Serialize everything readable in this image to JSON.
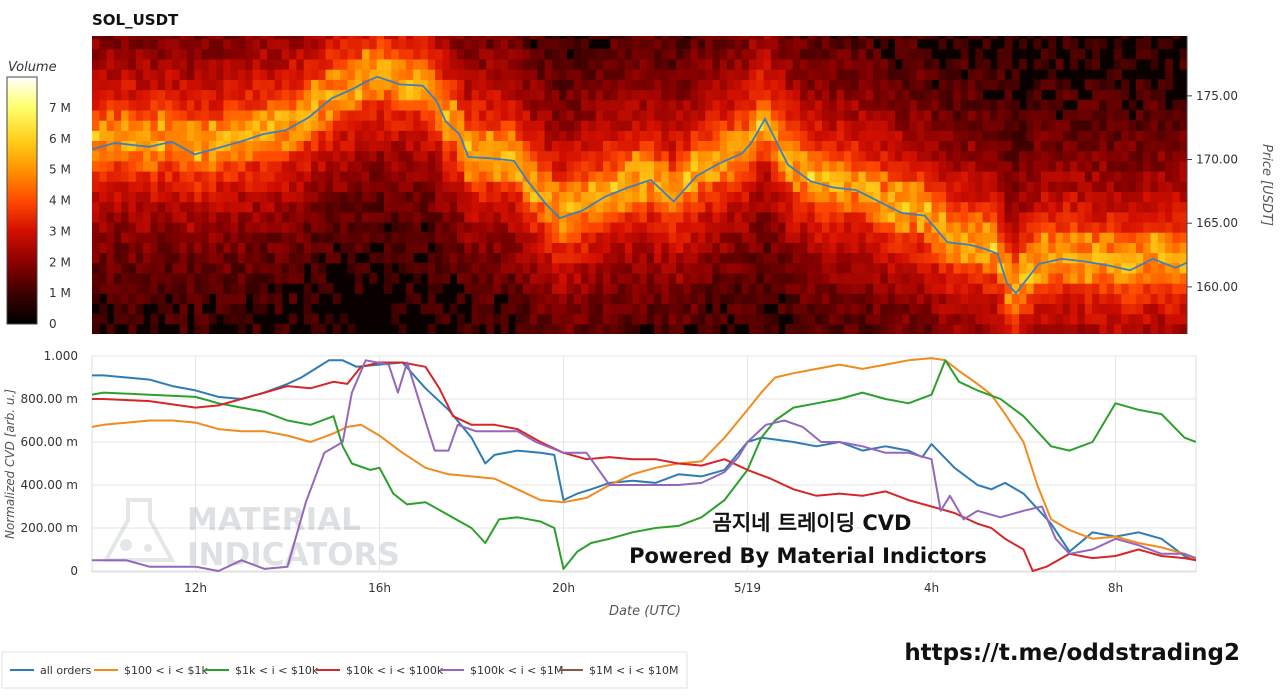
{
  "chart_data": [
    {
      "type": "heatmap",
      "title": "SOL_USDT",
      "colorbar": {
        "title": "Volume",
        "ticks": [
          "0",
          "1 M",
          "2 M",
          "3 M",
          "4 M",
          "5 M",
          "6 M",
          "7 M"
        ],
        "tick_values": [
          0,
          1000000,
          2000000,
          3000000,
          4000000,
          5000000,
          6000000,
          7000000
        ],
        "range": [
          0,
          8000000
        ],
        "colors": [
          "#000000",
          "#3a0000",
          "#8a0000",
          "#d41000",
          "#ff4a00",
          "#ff9200",
          "#ffd21c",
          "#ffff6e",
          "#ffffff"
        ]
      },
      "ylabel": "Price [USDT]",
      "y_ticks": [
        "160.00",
        "165.00",
        "170.00",
        "175.00"
      ],
      "y_tick_values": [
        160,
        165,
        170,
        175
      ],
      "ylim": [
        156.3,
        179.7
      ],
      "y_side": "right",
      "price_series": {
        "color": "#3d7fc0",
        "x_hours": [
          9.75,
          10.25,
          11,
          11.5,
          12,
          12.5,
          13,
          13.5,
          14,
          14.5,
          15,
          15.25,
          15.5,
          15.75,
          16,
          16.5,
          17,
          17.3,
          17.5,
          17.8,
          18,
          18.5,
          19,
          19.3,
          19.7,
          20,
          20.5,
          21,
          21.5,
          22,
          22.5,
          23,
          23.5,
          24,
          24.2,
          24.5,
          25,
          25.5,
          26,
          26.5,
          27,
          27.5,
          28,
          28.5,
          29,
          29.3,
          29.6,
          29.8,
          30,
          30.5,
          31,
          31.5,
          32,
          32.5,
          33,
          33.5,
          33.75
        ],
        "price": [
          170.8,
          171.3,
          171.0,
          171.4,
          170.4,
          170.9,
          171.4,
          172.0,
          172.3,
          173.3,
          174.8,
          175.2,
          175.6,
          176.1,
          176.5,
          175.9,
          175.8,
          174.6,
          173.0,
          172.0,
          170.2,
          170.1,
          169.9,
          168.3,
          166.5,
          165.4,
          166.0,
          167.1,
          167.8,
          168.4,
          166.7,
          168.7,
          169.7,
          170.5,
          171.3,
          173.2,
          169.6,
          168.3,
          167.8,
          167.6,
          166.7,
          165.8,
          165.6,
          163.5,
          163.3,
          163.0,
          162.6,
          160.3,
          159.5,
          161.8,
          162.2,
          162.0,
          161.7,
          161.3,
          162.2,
          161.5,
          161.9
        ]
      }
    },
    {
      "type": "line",
      "xlabel": "Date (UTC)",
      "ylabel": "Normalized CVD [arb. u.]",
      "x_ticks": [
        "12h",
        "16h",
        "20h",
        "5/19",
        "4h",
        "8h"
      ],
      "x_tick_hours": [
        12,
        16,
        20,
        24,
        28,
        32
      ],
      "xlim_hours": [
        9.75,
        33.75
      ],
      "y_ticks": [
        "0",
        "200.00 m",
        "400.00 m",
        "600.00 m",
        "800.00 m",
        "1.000"
      ],
      "y_tick_values": [
        0,
        0.2,
        0.4,
        0.6,
        0.8,
        1.0
      ],
      "ylim": [
        0,
        1.0
      ],
      "grid": true,
      "legend_position": "bottom",
      "series": [
        {
          "name": "all orders",
          "color": "#2f7cb5",
          "x_hours": [
            9.75,
            10,
            10.5,
            11,
            11.5,
            12,
            12.5,
            13,
            13.5,
            14,
            14.3,
            14.6,
            14.9,
            15.2,
            15.5,
            16,
            16.5,
            17,
            17.5,
            18,
            18.3,
            18.5,
            19,
            19.5,
            19.8,
            20,
            20.3,
            20.6,
            21,
            21.5,
            22,
            22.5,
            23,
            23.5,
            24,
            24.3,
            25,
            25.5,
            26,
            26.5,
            27,
            27.5,
            27.8,
            28,
            28.5,
            29,
            29.3,
            29.6,
            30,
            30.3,
            30.6,
            31,
            31.5,
            32,
            32.5,
            33,
            33.5,
            33.75
          ],
          "values": [
            0.91,
            0.91,
            0.9,
            0.89,
            0.86,
            0.84,
            0.81,
            0.8,
            0.83,
            0.87,
            0.9,
            0.94,
            0.98,
            0.98,
            0.95,
            0.96,
            0.97,
            0.85,
            0.75,
            0.62,
            0.5,
            0.54,
            0.56,
            0.55,
            0.54,
            0.33,
            0.36,
            0.38,
            0.41,
            0.42,
            0.41,
            0.45,
            0.44,
            0.47,
            0.6,
            0.62,
            0.6,
            0.58,
            0.6,
            0.56,
            0.58,
            0.56,
            0.53,
            0.59,
            0.48,
            0.4,
            0.38,
            0.41,
            0.36,
            0.29,
            0.22,
            0.09,
            0.18,
            0.16,
            0.18,
            0.15,
            0.07,
            0.05
          ]
        },
        {
          "name": "$100 < i < $1k",
          "color": "#f28a1e",
          "x_hours": [
            9.75,
            10,
            11,
            11.5,
            12,
            12.5,
            13,
            13.5,
            14,
            14.5,
            15,
            15.3,
            15.6,
            16,
            16.5,
            17,
            17.5,
            18,
            18.5,
            19,
            19.5,
            20,
            20.5,
            21,
            21.5,
            22,
            22.5,
            23,
            23.5,
            24,
            24.3,
            24.6,
            25,
            25.5,
            26,
            26.5,
            27,
            27.5,
            28,
            28.3,
            28.6,
            29,
            29.3,
            29.6,
            30,
            30.3,
            30.6,
            31,
            31.5,
            32,
            32.5,
            33,
            33.5,
            33.75
          ],
          "values": [
            0.67,
            0.68,
            0.7,
            0.7,
            0.69,
            0.66,
            0.65,
            0.65,
            0.63,
            0.6,
            0.64,
            0.67,
            0.68,
            0.63,
            0.55,
            0.48,
            0.45,
            0.44,
            0.43,
            0.38,
            0.33,
            0.32,
            0.34,
            0.4,
            0.45,
            0.48,
            0.5,
            0.51,
            0.62,
            0.75,
            0.83,
            0.9,
            0.92,
            0.94,
            0.96,
            0.94,
            0.96,
            0.98,
            0.99,
            0.98,
            0.93,
            0.87,
            0.82,
            0.73,
            0.6,
            0.4,
            0.24,
            0.19,
            0.15,
            0.16,
            0.13,
            0.11,
            0.08,
            0.05
          ]
        },
        {
          "name": "$1k < i < $10k",
          "color": "#2ca02c",
          "x_hours": [
            9.75,
            10,
            11,
            12,
            12.5,
            13,
            13.5,
            14,
            14.5,
            15,
            15.2,
            15.4,
            15.8,
            16,
            16.3,
            16.6,
            17,
            17.5,
            18,
            18.3,
            18.6,
            19,
            19.5,
            19.8,
            20,
            20.3,
            20.6,
            21,
            21.5,
            22,
            22.5,
            23,
            23.5,
            24,
            24.3,
            24.6,
            25,
            25.5,
            26,
            26.5,
            27,
            27.5,
            28,
            28.3,
            28.6,
            29,
            29.5,
            30,
            30.3,
            30.6,
            31,
            31.5,
            32,
            32.5,
            33,
            33.5,
            33.75
          ],
          "values": [
            0.82,
            0.83,
            0.82,
            0.81,
            0.78,
            0.76,
            0.74,
            0.7,
            0.68,
            0.72,
            0.58,
            0.5,
            0.47,
            0.48,
            0.36,
            0.31,
            0.32,
            0.26,
            0.2,
            0.13,
            0.24,
            0.25,
            0.23,
            0.2,
            0.01,
            0.09,
            0.13,
            0.15,
            0.18,
            0.2,
            0.21,
            0.25,
            0.33,
            0.47,
            0.62,
            0.7,
            0.76,
            0.78,
            0.8,
            0.83,
            0.8,
            0.78,
            0.82,
            0.98,
            0.88,
            0.84,
            0.8,
            0.72,
            0.65,
            0.58,
            0.56,
            0.6,
            0.78,
            0.75,
            0.73,
            0.62,
            0.6
          ]
        },
        {
          "name": "$10k < i < $100k",
          "color": "#d62728",
          "x_hours": [
            9.75,
            10,
            11,
            12,
            12.5,
            13,
            13.5,
            14,
            14.5,
            15,
            15.3,
            15.6,
            16,
            16.5,
            17,
            17.3,
            17.6,
            18,
            18.5,
            19,
            19.5,
            20,
            20.5,
            21,
            21.5,
            22,
            22.5,
            23,
            23.5,
            24,
            24.5,
            25,
            25.5,
            26,
            26.5,
            27,
            27.5,
            28,
            28.5,
            29,
            29.3,
            29.6,
            30,
            30.2,
            30.5,
            31,
            31.5,
            32,
            32.5,
            33,
            33.5,
            33.75
          ],
          "values": [
            0.8,
            0.8,
            0.79,
            0.76,
            0.77,
            0.8,
            0.83,
            0.86,
            0.85,
            0.88,
            0.87,
            0.95,
            0.97,
            0.97,
            0.95,
            0.85,
            0.72,
            0.68,
            0.68,
            0.66,
            0.6,
            0.55,
            0.52,
            0.53,
            0.52,
            0.52,
            0.5,
            0.49,
            0.52,
            0.47,
            0.43,
            0.38,
            0.35,
            0.36,
            0.35,
            0.37,
            0.33,
            0.3,
            0.27,
            0.22,
            0.2,
            0.15,
            0.1,
            0.0,
            0.02,
            0.08,
            0.06,
            0.07,
            0.1,
            0.07,
            0.06,
            0.05
          ]
        },
        {
          "name": "$100k < i < $1M",
          "color": "#9467bd",
          "x_hours": [
            9.75,
            10.5,
            11,
            12,
            12.5,
            13,
            13.5,
            14,
            14.4,
            14.8,
            15.2,
            15.4,
            15.7,
            16.2,
            16.4,
            16.6,
            17.2,
            17.5,
            17.7,
            18.1,
            18.6,
            19,
            19.4,
            20,
            20.5,
            21,
            21.5,
            22,
            22.5,
            23,
            23.5,
            23.8,
            24,
            24.4,
            24.8,
            25.2,
            25.6,
            26,
            26.5,
            27,
            27.5,
            28,
            28.2,
            28.4,
            28.7,
            29,
            29.5,
            30,
            30.4,
            30.7,
            31,
            31.5,
            32,
            32.5,
            33,
            33.5,
            33.75
          ],
          "values": [
            0.05,
            0.05,
            0.02,
            0.02,
            0.0,
            0.05,
            0.01,
            0.02,
            0.32,
            0.55,
            0.6,
            0.83,
            0.98,
            0.96,
            0.83,
            0.97,
            0.56,
            0.56,
            0.68,
            0.65,
            0.65,
            0.65,
            0.6,
            0.55,
            0.55,
            0.4,
            0.4,
            0.4,
            0.4,
            0.41,
            0.46,
            0.53,
            0.6,
            0.68,
            0.7,
            0.67,
            0.6,
            0.6,
            0.58,
            0.55,
            0.55,
            0.52,
            0.28,
            0.35,
            0.24,
            0.28,
            0.25,
            0.28,
            0.3,
            0.15,
            0.08,
            0.1,
            0.15,
            0.12,
            0.08,
            0.08,
            0.06
          ]
        },
        {
          "name": "$1M < i < $10M",
          "color": "#8c564b",
          "x_hours": [],
          "values": []
        }
      ]
    }
  ],
  "watermark": {
    "line1": "MATERIAL",
    "line2": "INDICATORS"
  },
  "overlay": {
    "korean_title": "곰지네 트레이딩 CVD",
    "powered_by": "Powered By Material Indictors"
  },
  "telegram_link": "https://t.me/oddstrading2"
}
